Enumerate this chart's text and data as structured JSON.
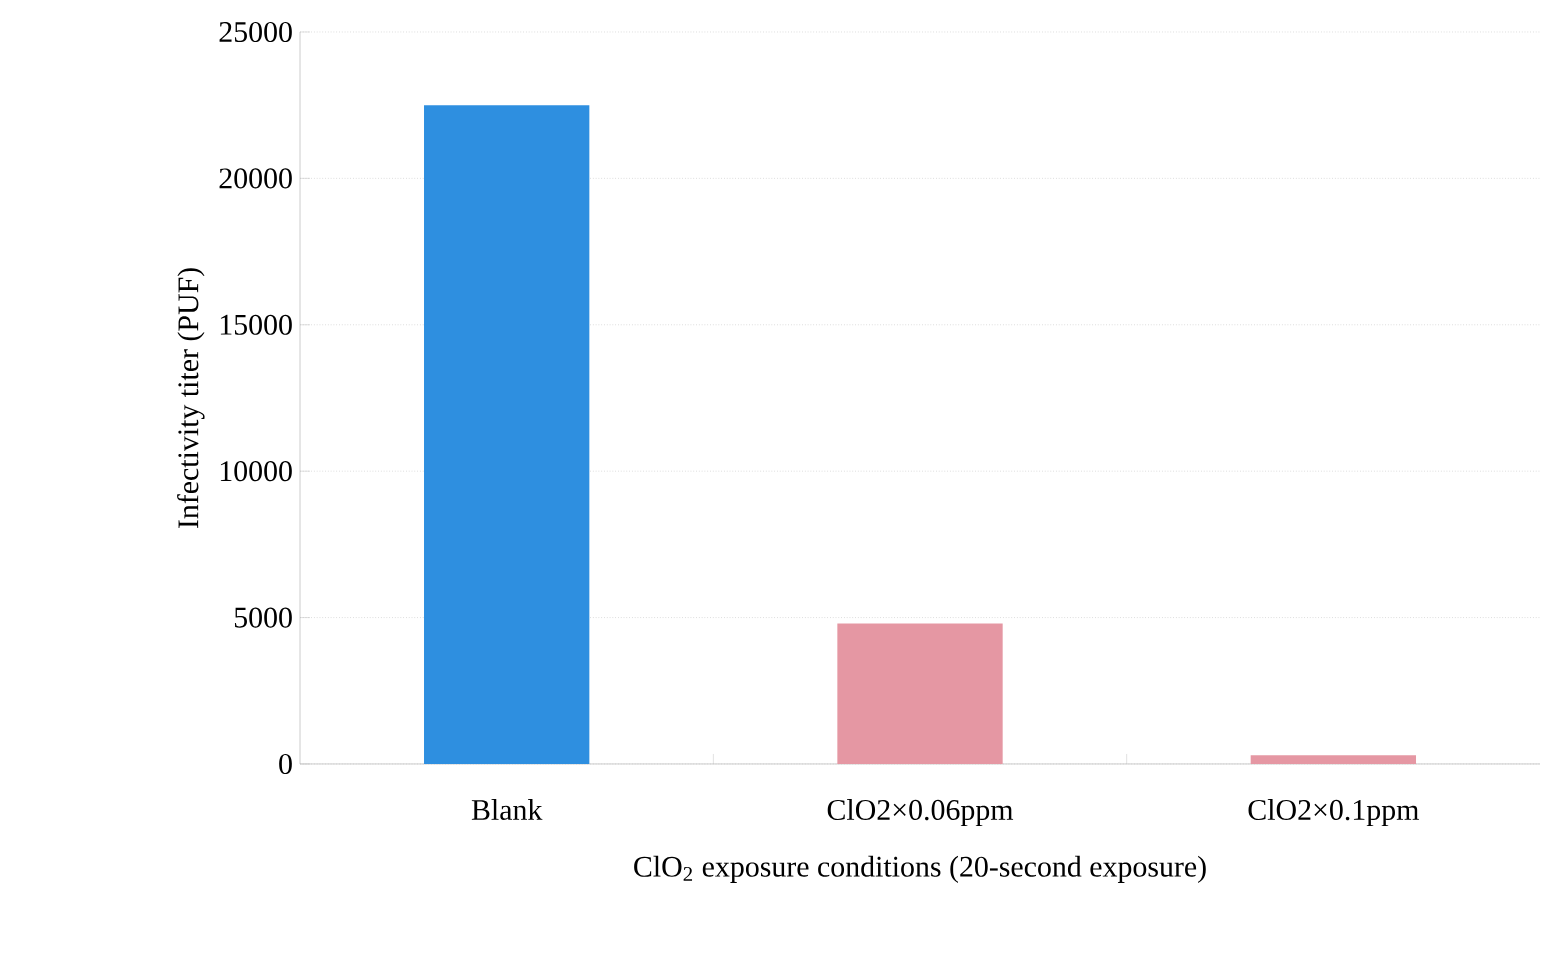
{
  "chart_data": {
    "type": "bar",
    "xlabel": "ClO$_{2}$ exposure conditions (20-second exposure)",
    "ylabel": "Infectivity titer (PUF)",
    "categories": [
      "Blank",
      "ClO2×0.06ppm",
      "ClO2×0.1ppm"
    ],
    "values": [
      22500,
      4800,
      300
    ],
    "colors": [
      "#2e8fe0",
      "#e597a3",
      "#e597a3"
    ],
    "ylim": [
      0,
      25000
    ],
    "yticks": [
      0,
      5000,
      10000,
      15000,
      20000,
      25000
    ],
    "grid": "y"
  }
}
